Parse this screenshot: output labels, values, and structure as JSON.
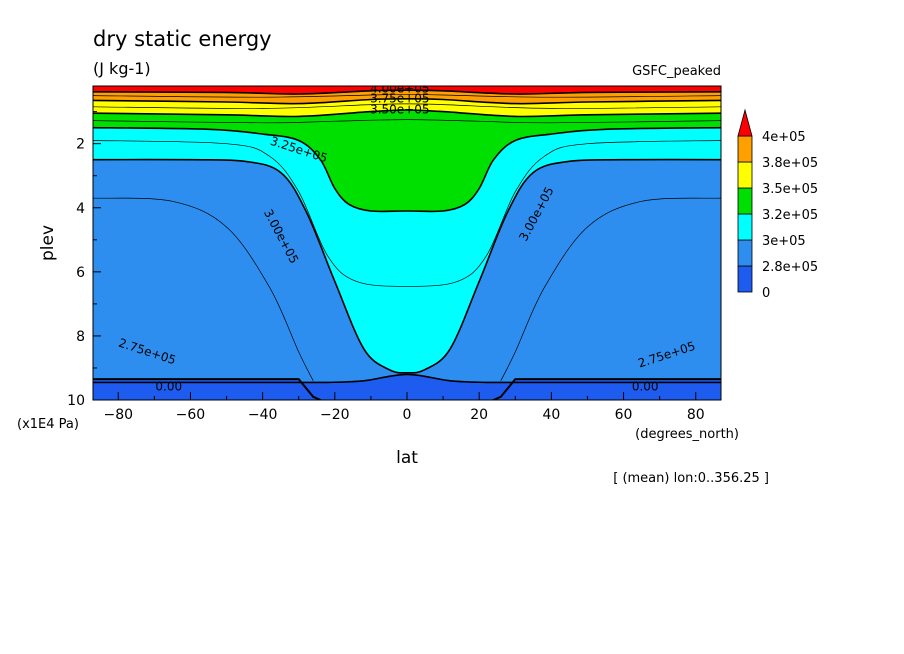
{
  "chart_data": {
    "type": "contour",
    "title": "dry static energy",
    "units": "(J kg-1)",
    "dataset_label": "GSFC_peaked",
    "xlabel": "lat",
    "xunits": "(degrees_north)",
    "ylabel": "plev",
    "yunits": "(x1E4 Pa)",
    "footer": "[ (mean) lon:0..356.25 ]",
    "xlim": [
      -87,
      87
    ],
    "ylim": [
      10,
      0.2
    ],
    "x_ticks": [
      "−80",
      "−60",
      "−40",
      "−20",
      "0",
      "20",
      "40",
      "60",
      "80"
    ],
    "x_tick_values": [
      -80,
      -60,
      -40,
      -20,
      0,
      20,
      40,
      60,
      80
    ],
    "y_ticks": [
      "2",
      "4",
      "6",
      "8",
      "10"
    ],
    "y_tick_values": [
      2,
      4,
      6,
      8,
      10
    ],
    "levels": [
      {
        "label": "0",
        "color": "#1e5cf0"
      },
      {
        "label": "2.8e+05",
        "color": "#2e8ef0"
      },
      {
        "label": "3e+05",
        "color": "#00ffff"
      },
      {
        "label": "3.2e+05",
        "color": "#00e000"
      },
      {
        "label": "3.5e+05",
        "color": "#ffff00"
      },
      {
        "label": "3.8e+05",
        "color": "#ffa000"
      },
      {
        "label": "4e+05",
        "color": "#ff0000"
      }
    ],
    "ground_color": "#1e5cf0",
    "contour_labels": [
      {
        "text": "4.00e+05",
        "lat": -2,
        "plev": 0.3
      },
      {
        "text": "3.75e+05",
        "lat": -2,
        "plev": 0.6
      },
      {
        "text": "3.50e+05",
        "lat": -2,
        "plev": 0.95
      },
      {
        "text": "3.25e+05",
        "lat": -30,
        "plev": 2.2
      },
      {
        "text": "3.00e+05",
        "lat": -35,
        "plev": 4.9
      },
      {
        "text": "3.00e+05",
        "lat": 36,
        "plev": 4.2
      },
      {
        "text": "2.75e+05",
        "lat": -72,
        "plev": 8.5
      },
      {
        "text": "2.75e+05",
        "lat": 72,
        "plev": 8.6
      },
      {
        "text": "0.00",
        "lat": -66,
        "plev": 9.6
      },
      {
        "text": "0.00",
        "lat": 66,
        "plev": 9.6
      }
    ]
  }
}
